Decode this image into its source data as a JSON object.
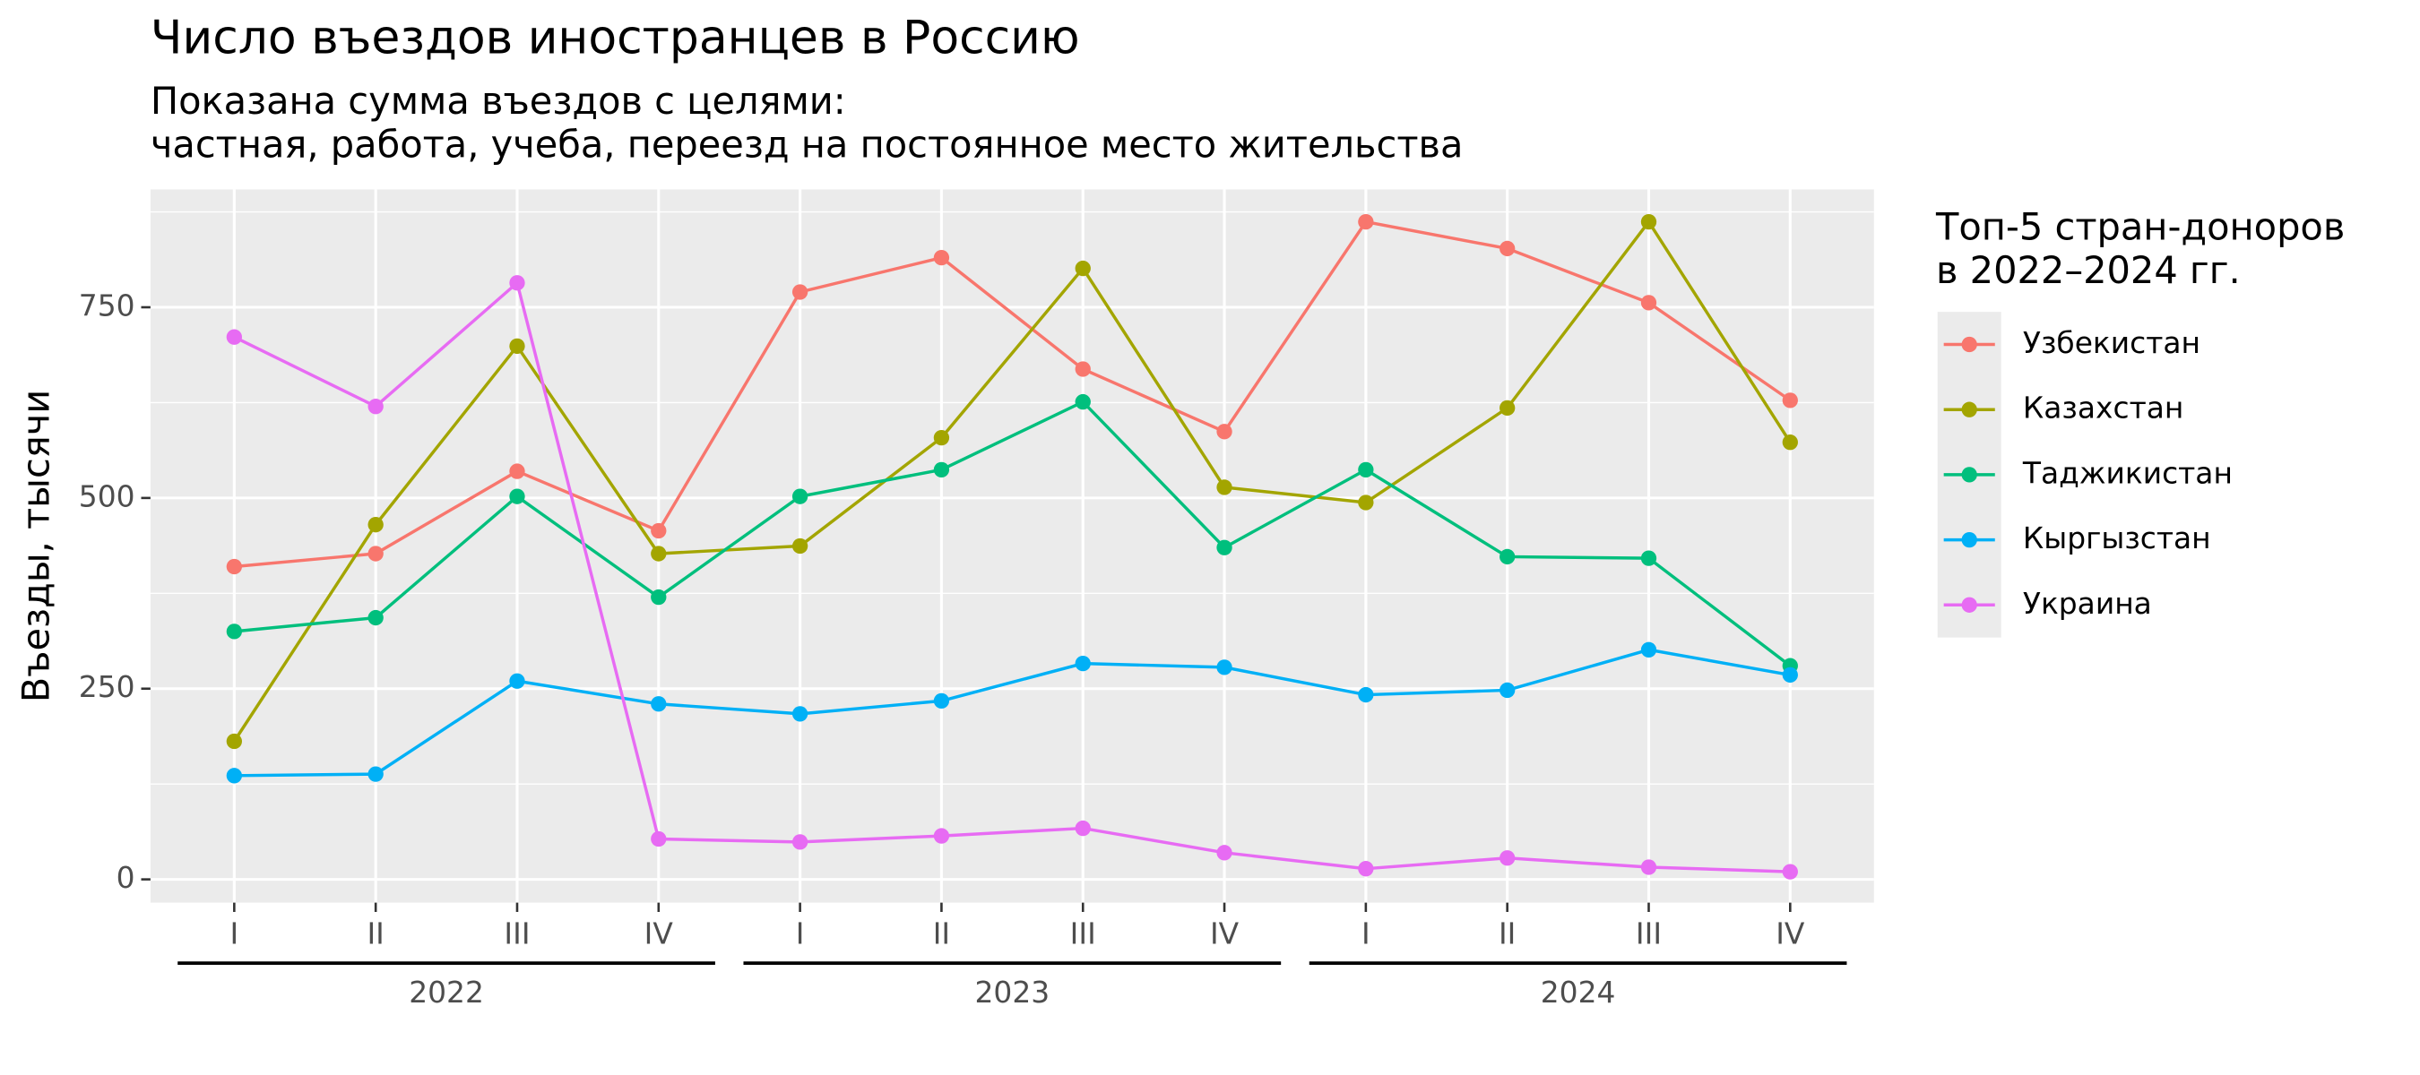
{
  "chart_data": {
    "type": "line",
    "title": "Число въездов иностранцев в Россию",
    "subtitle": [
      "Показана сумма въездов с целями:",
      "частная, работа, учеба, переезд на постоянное место жительства"
    ],
    "y_label": "Въезды, тысячи",
    "categories": [
      "I",
      "II",
      "III",
      "IV",
      "I",
      "II",
      "III",
      "IV",
      "I",
      "II",
      "III",
      "IV"
    ],
    "x_groups": [
      "2022",
      "2023",
      "2024"
    ],
    "series": [
      {
        "name": "Узбекистан",
        "color": "#F8766D",
        "values": [
          410,
          427,
          535,
          457,
          770,
          815,
          669,
          587,
          862,
          827,
          756,
          628
        ]
      },
      {
        "name": "Казахстан",
        "color": "#A3A500",
        "values": [
          181,
          465,
          699,
          427,
          437,
          579,
          801,
          514,
          494,
          618,
          862,
          573
        ]
      },
      {
        "name": "Таджикистан",
        "color": "#00BF7D",
        "values": [
          325,
          343,
          502,
          370,
          502,
          537,
          626,
          435,
          537,
          423,
          421,
          280
        ]
      },
      {
        "name": "Кыргызстан",
        "color": "#00B0F6",
        "values": [
          136,
          138,
          260,
          230,
          217,
          234,
          283,
          278,
          242,
          248,
          301,
          268
        ]
      },
      {
        "name": "Украина",
        "color": "#E76BF3",
        "values": [
          711,
          620,
          782,
          53,
          49,
          57,
          67,
          35,
          14,
          28,
          16,
          10
        ]
      }
    ],
    "legend_title": [
      "Топ-5 стран-доноров",
      "в 2022–2024 гг."
    ],
    "ylim": [
      -30.5,
      904.5
    ],
    "yticks": [
      0,
      250,
      500,
      750
    ],
    "minor_yticks": [
      125,
      375,
      625,
      875
    ],
    "grid": true
  }
}
